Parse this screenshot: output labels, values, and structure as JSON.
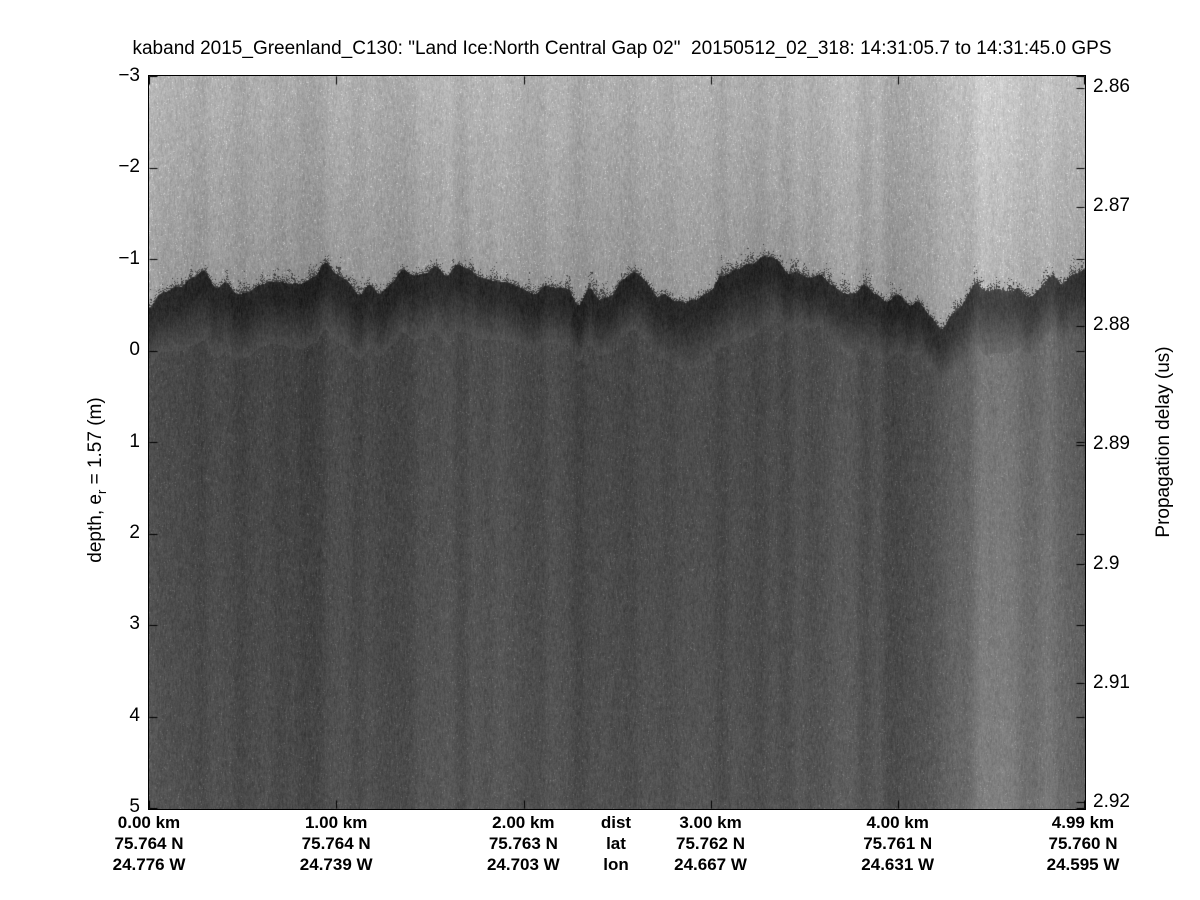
{
  "figure": {
    "title": "kaband 2015_Greenland_C130: \"Land Ice:North Central Gap 02\"  20150512_02_318: 14:31:05.7 to 14:31:45.0 GPS",
    "left_axis": {
      "label_pre": "depth, e",
      "label_sub": "r",
      "label_post": " = 1.57 (m)",
      "tick_labels": [
        "−3",
        "−2",
        "−1",
        "0",
        "1",
        "2",
        "3",
        "4",
        "5"
      ],
      "tick_values": [
        -3,
        -2,
        -1,
        0,
        1,
        2,
        3,
        4,
        5
      ]
    },
    "right_axis": {
      "label": "Propagation delay (us)",
      "tick_labels": [
        "2.86",
        "2.87",
        "2.88",
        "2.89",
        "2.9",
        "2.91",
        "2.92"
      ],
      "tick_values": [
        2.86,
        2.87,
        2.88,
        2.89,
        2.9,
        2.91,
        2.92
      ]
    },
    "bottom_axis": {
      "header": {
        "dist": "dist",
        "lat": "lat",
        "lon": "lon"
      },
      "columns": [
        {
          "km_value": 0,
          "dist": "0.00 km",
          "lat": "75.764 N",
          "lon": "24.776 W"
        },
        {
          "km_value": 1,
          "dist": "1.00 km",
          "lat": "75.764 N",
          "lon": "24.739 W"
        },
        {
          "km_value": 2,
          "dist": "2.00 km",
          "lat": "75.763 N",
          "lon": "24.703 W"
        },
        {
          "km_value": 3,
          "dist": "3.00 km",
          "lat": "75.762 N",
          "lon": "24.667 W"
        },
        {
          "km_value": 4,
          "dist": "4.00 km",
          "lat": "75.761 N",
          "lon": "24.631 W"
        },
        {
          "km_value": 4.99,
          "dist": "4.99 km",
          "lat": "75.760 N",
          "lon": "24.595 W"
        }
      ],
      "max_km": 4.99
    }
  },
  "chart_data": {
    "type": "heatmap",
    "subtype": "radar-echogram",
    "title": "kaband 2015_Greenland_C130: \"Land Ice:North Central Gap 02\"  20150512_02_318: 14:31:05.7 to 14:31:45.0 GPS",
    "x_axis": {
      "ticks_km": [
        0,
        1,
        2,
        3,
        4,
        4.99
      ],
      "tick_rows": [
        "dist",
        "lat",
        "lon"
      ],
      "lat_at_ticks": [
        "75.764 N",
        "75.764 N",
        "75.763 N",
        "75.762 N",
        "75.761 N",
        "75.760 N"
      ],
      "lon_at_ticks": [
        "24.776 W",
        "24.739 W",
        "24.703 W",
        "24.667 W",
        "24.631 W",
        "24.595 W"
      ],
      "range_km": [
        0,
        4.99
      ]
    },
    "y_axis_left": {
      "label": "depth, e_r = 1.57 (m)",
      "ticks": [
        -3,
        -2,
        -1,
        0,
        1,
        2,
        3,
        4,
        5
      ],
      "range": [
        -3,
        5
      ]
    },
    "y_axis_right": {
      "label": "Propagation delay (us)",
      "ticks": [
        2.86,
        2.87,
        2.88,
        2.89,
        2.9,
        2.91,
        2.92
      ],
      "range": [
        2.859,
        2.9205
      ]
    },
    "colormap": "gray (1-gray: bright = low power, dark = high power)",
    "grid": false,
    "legend": false,
    "features": {
      "noise_region": {
        "depth_m": [
          -3,
          -0.7
        ],
        "mean_gray_0_255": 168,
        "note": "light speckled noise above ice surface, faint vertical streaks, darkens toward surface"
      },
      "surface_return": {
        "depth_m": [
          -1.1,
          0.2
        ],
        "mean_gray_0_255": 55,
        "note": "dark jagged high-power surface return band; spiky upper boundary fluctuating between about -1.1 m and -0.4 m"
      },
      "subsurface_region": {
        "depth_m": [
          0.2,
          5
        ],
        "mean_gray_0_255": 72,
        "note": "medium-dark speckle below surface, slightly brightening with depth"
      },
      "bright_streaks": {
        "distance_km": [
          4.45,
          4.9
        ],
        "note": "two lighter vertical columns (weaker return) extending from surface to bottom near 4.5-4.9 km"
      }
    }
  }
}
